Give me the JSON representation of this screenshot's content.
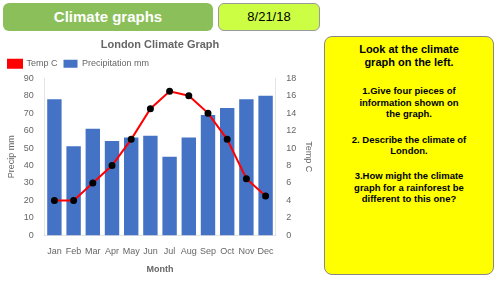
{
  "chart_data": {
    "type": "bar",
    "title": "London Climate Graph",
    "categories": [
      "Jan",
      "Feb",
      "Mar",
      "Apr",
      "May",
      "Jun",
      "Jul",
      "Aug",
      "Sep",
      "Oct",
      "Nov",
      "Dec"
    ],
    "series": [
      {
        "name": "Precipitation mm",
        "color": "#4472C4",
        "type": "bar",
        "values": [
          78,
          51,
          61,
          54,
          56,
          57,
          45,
          56,
          69,
          73,
          78,
          80
        ]
      },
      {
        "name": "Temp C",
        "color": "red",
        "type": "line",
        "axis": "y2",
        "marker": "circle",
        "values": [
          4,
          4,
          6,
          8,
          11,
          14.5,
          16.5,
          16,
          14,
          11,
          6.5,
          4.5
        ]
      }
    ],
    "xlabel": "Month",
    "ylabel": "Precip mm",
    "y2label": "Temp C",
    "ylim": [
      0,
      90
    ],
    "yticks": [
      0,
      10,
      20,
      30,
      40,
      50,
      60,
      70,
      80,
      90
    ],
    "y2lim": [
      0,
      18
    ],
    "y2ticks": [
      0,
      2,
      4,
      6,
      8,
      10,
      12,
      14,
      16,
      18
    ],
    "grid": false,
    "legend": "top-left",
    "annotations": [
      "Climate graphs",
      "8/21/18",
      "Look at the climate\ngraph on the left.",
      "1.Give four pieces of\ninformation shown on\nthe graph.",
      "2. Describe the climate of\nLondon.",
      "3.How might the climate\ngraph for a rainforest be\ndifferent to this one?"
    ]
  }
}
